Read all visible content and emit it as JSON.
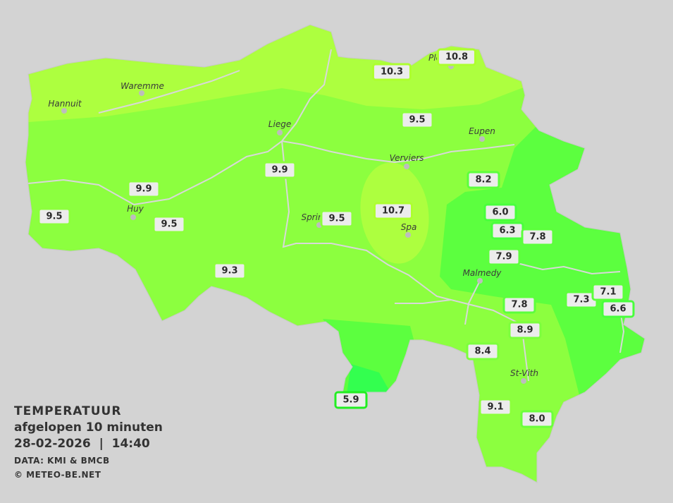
{
  "legend": {
    "title": "TEMPERATUUR",
    "subtitle": "afgelopen 10 minuten",
    "datetime": "28-02-2026  |  14:40",
    "source": "DATA: KMI & BMCB",
    "copyright": "© METEO-BE.NET"
  },
  "colors": {
    "background": "#d3d3d3",
    "t_5": "#33ff4f",
    "t_6_8": "#5cff3f",
    "t_9": "#8cff3f",
    "t_10": "#adff3f",
    "river": "#d8d8d8"
  },
  "cities": [
    {
      "name": "Waremme"
    },
    {
      "name": "Hannuit"
    },
    {
      "name": "Liege"
    },
    {
      "name": "Eupen"
    },
    {
      "name": "Verviers"
    },
    {
      "name": "Spa"
    },
    {
      "name": "Sprin"
    },
    {
      "name": "Huy"
    },
    {
      "name": "Malmedy"
    },
    {
      "name": "St-Vith"
    },
    {
      "name": "Plo"
    }
  ],
  "stations": [
    {
      "value": "10.8"
    },
    {
      "value": "10.3"
    },
    {
      "value": "9.5"
    },
    {
      "value": "9.9"
    },
    {
      "value": "9.9"
    },
    {
      "value": "9.5"
    },
    {
      "value": "9.5"
    },
    {
      "value": "9.5"
    },
    {
      "value": "10.7"
    },
    {
      "value": "8.2"
    },
    {
      "value": "6.0"
    },
    {
      "value": "6.3"
    },
    {
      "value": "7.8"
    },
    {
      "value": "7.9"
    },
    {
      "value": "9.3"
    },
    {
      "value": "7.8"
    },
    {
      "value": "7.3"
    },
    {
      "value": "7.1"
    },
    {
      "value": "6.6"
    },
    {
      "value": "8.9"
    },
    {
      "value": "8.4"
    },
    {
      "value": "5.9"
    },
    {
      "value": "9.1"
    },
    {
      "value": "8.0"
    }
  ]
}
